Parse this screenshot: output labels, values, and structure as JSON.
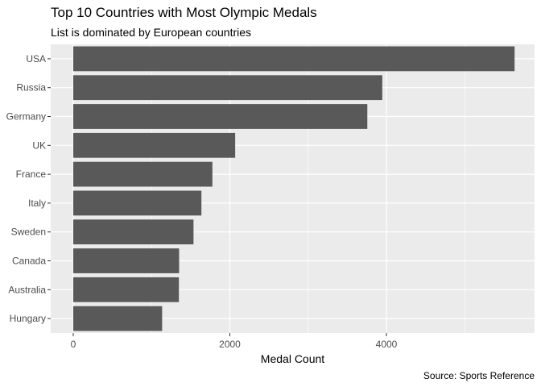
{
  "chart_data": {
    "type": "bar",
    "orientation": "horizontal",
    "title": "Top 10 Countries with Most Olympic Medals",
    "subtitle": "List is dominated by European countries",
    "xlabel": "Medal Count",
    "ylabel": "",
    "caption": "Source: Sports Reference",
    "categories": [
      "USA",
      "Russia",
      "Germany",
      "UK",
      "France",
      "Italy",
      "Sweden",
      "Canada",
      "Australia",
      "Hungary"
    ],
    "values": [
      5637,
      3947,
      3756,
      2068,
      1777,
      1637,
      1536,
      1352,
      1349,
      1135
    ],
    "xlim": [
      0,
      5900
    ],
    "xticks": [
      0,
      2000,
      4000
    ],
    "xtick_labels": [
      "0",
      "2000",
      "4000"
    ],
    "grid": true,
    "legend": "none",
    "colors": {
      "bar": "#595959",
      "panel": "#ebebeb",
      "grid": "#ffffff"
    }
  }
}
